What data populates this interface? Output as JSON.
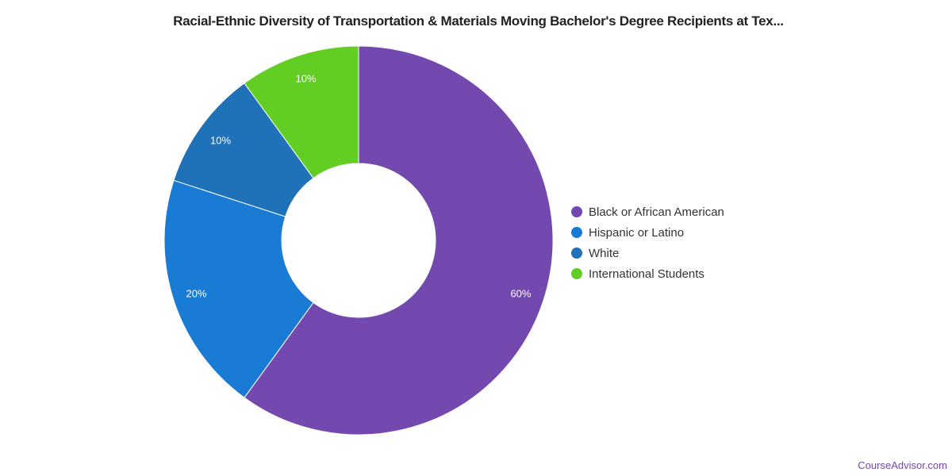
{
  "chart_data": {
    "type": "pie",
    "donut": true,
    "title": "Racial-Ethnic Diversity of Transportation & Materials Moving Bachelor's Degree Recipients at Tex...",
    "slices": [
      {
        "label": "Black or African American",
        "value": 60,
        "display": "60%",
        "color": "#7449AF"
      },
      {
        "label": "Hispanic or Latino",
        "value": 20,
        "display": "20%",
        "color": "#1A7BD4"
      },
      {
        "label": "White",
        "value": 10,
        "display": "10%",
        "color": "#1F72B8"
      },
      {
        "label": "International Students",
        "value": 10,
        "display": "10%",
        "color": "#62CD22"
      }
    ],
    "legend_position": "right"
  },
  "credit": "CourseAdvisor.com"
}
